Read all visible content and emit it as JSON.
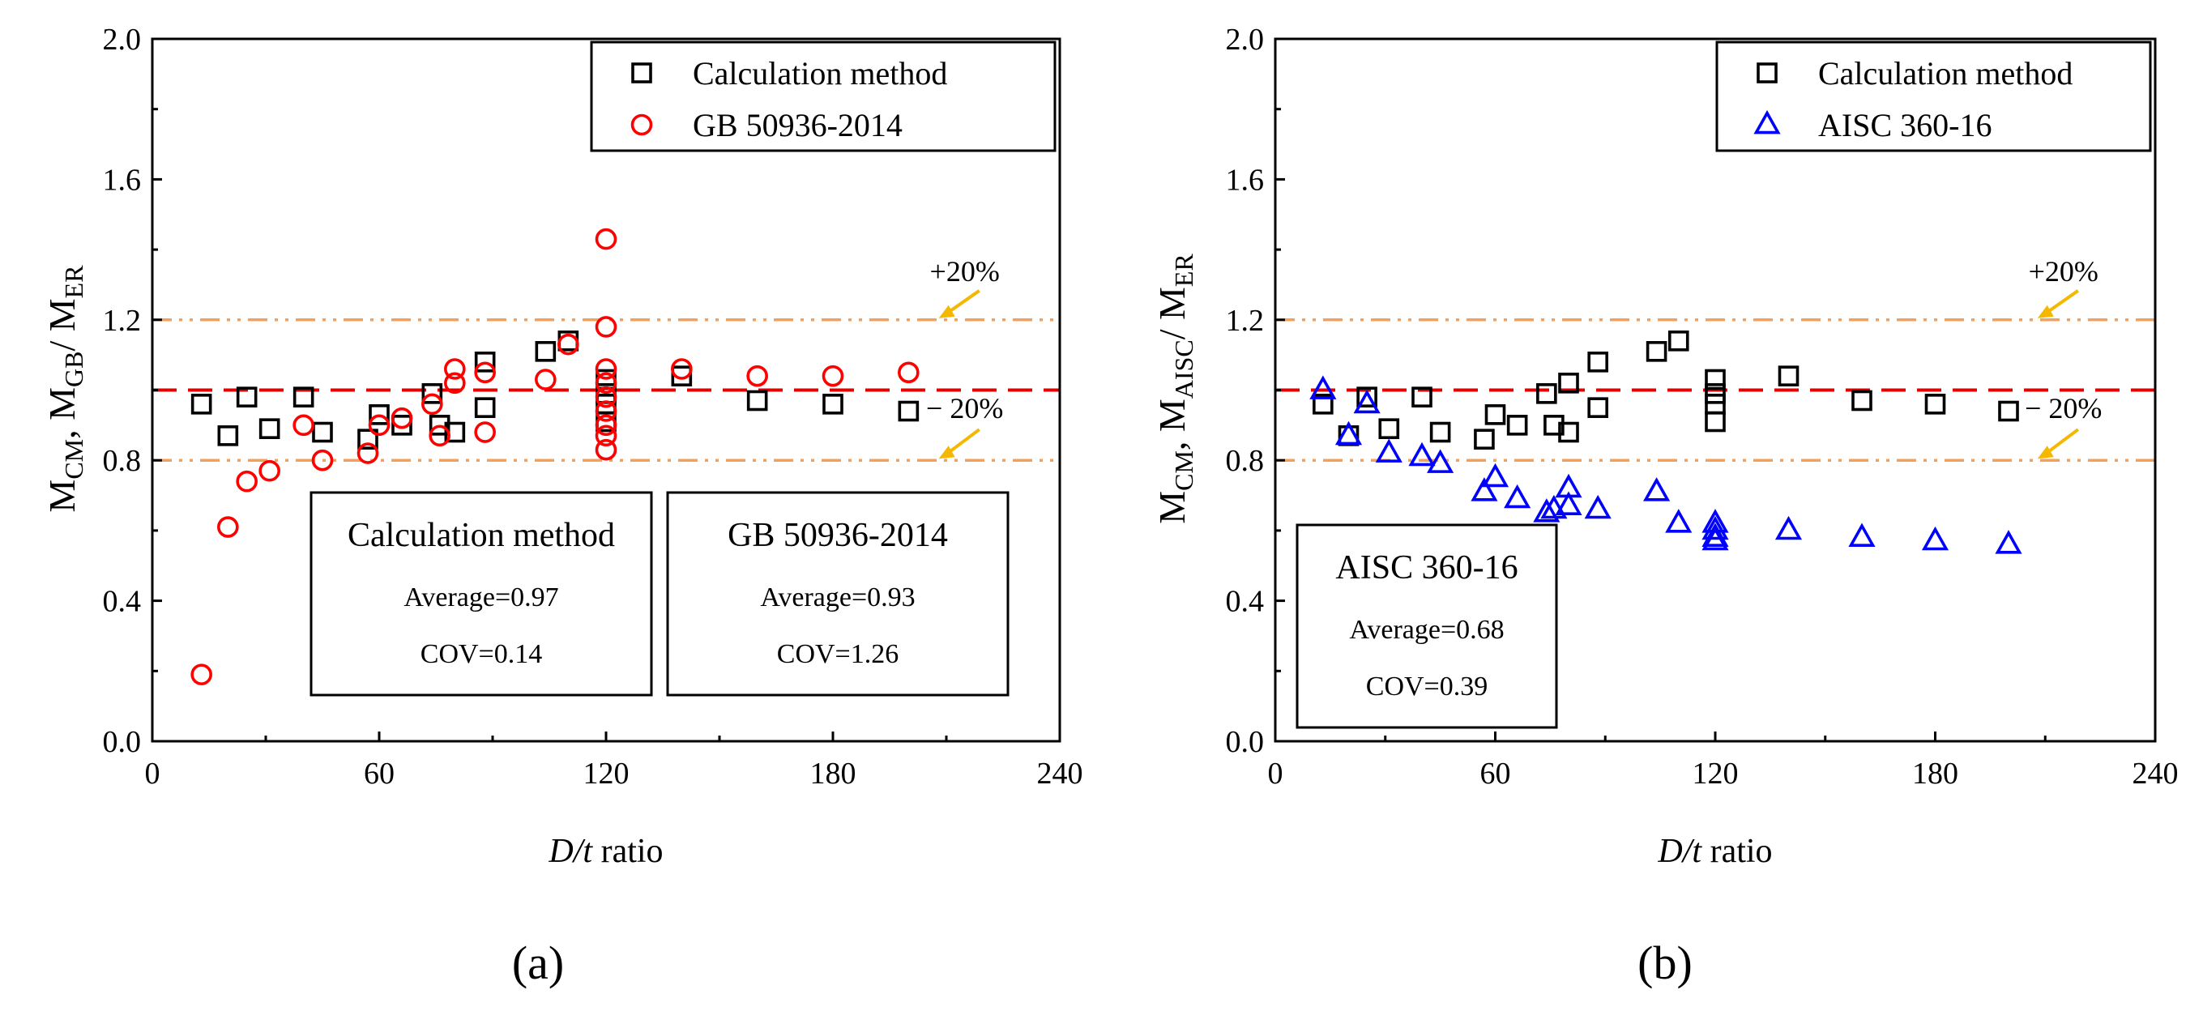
{
  "colors": {
    "calc": "#000000",
    "gb": "#ff0000",
    "aisc": "#0000ff",
    "ref_line": "#e00000",
    "band_line": "#f5a05a",
    "arrow": "#f5b800"
  },
  "chart_data": [
    {
      "type": "scatter",
      "panel_label": "(a)",
      "xlabel_italic": "D/t",
      "xlabel_rest": " ratio",
      "ylabel": {
        "main": "M",
        "sub1": "CM",
        "sep1": ", M",
        "sub2": "GB",
        "sep2": "/ M",
        "sub3": "ER"
      },
      "xlim": [
        0,
        240
      ],
      "ylim": [
        0.0,
        2.0
      ],
      "xticks": [
        "0",
        "60",
        "120",
        "180",
        "240"
      ],
      "xtick_values": [
        0,
        60,
        120,
        180,
        240
      ],
      "yticks": [
        "0.0",
        "0.4",
        "0.8",
        "1.2",
        "1.6",
        "2.0"
      ],
      "ytick_values": [
        0.0,
        0.4,
        0.8,
        1.2,
        1.6,
        2.0
      ],
      "reference_lines": [
        {
          "y": 1.0,
          "style": "dashed",
          "label": ""
        },
        {
          "y": 1.2,
          "style": "dashdot",
          "label": "+20%"
        },
        {
          "y": 0.8,
          "style": "dashdot",
          "label": "− 20%"
        }
      ],
      "legend": [
        "Calculation method",
        "GB 50936-2014"
      ],
      "legend_position": "top-right",
      "series": [
        {
          "name": "Calculation method",
          "marker": "square",
          "color_key": "calc",
          "points": [
            [
              13,
              0.96
            ],
            [
              20,
              0.87
            ],
            [
              25,
              0.98
            ],
            [
              31,
              0.89
            ],
            [
              40,
              0.98
            ],
            [
              45,
              0.88
            ],
            [
              57,
              0.86
            ],
            [
              60,
              0.93
            ],
            [
              66,
              0.9
            ],
            [
              74,
              0.99
            ],
            [
              76,
              0.9
            ],
            [
              80,
              0.88
            ],
            [
              88,
              1.08
            ],
            [
              88,
              0.95
            ],
            [
              104,
              1.11
            ],
            [
              110,
              1.14
            ],
            [
              120,
              1.03
            ],
            [
              120,
              0.99
            ],
            [
              120,
              0.96
            ],
            [
              120,
              0.91
            ],
            [
              140,
              1.04
            ],
            [
              160,
              0.97
            ],
            [
              180,
              0.96
            ],
            [
              200,
              0.94
            ]
          ]
        },
        {
          "name": "GB 50936-2014",
          "marker": "circle",
          "color_key": "gb",
          "points": [
            [
              13,
              0.19
            ],
            [
              20,
              0.61
            ],
            [
              25,
              0.74
            ],
            [
              31,
              0.77
            ],
            [
              40,
              0.9
            ],
            [
              45,
              0.8
            ],
            [
              57,
              0.82
            ],
            [
              60,
              0.9
            ],
            [
              66,
              0.92
            ],
            [
              74,
              0.96
            ],
            [
              76,
              0.87
            ],
            [
              80,
              1.06
            ],
            [
              80,
              1.02
            ],
            [
              88,
              1.05
            ],
            [
              88,
              0.88
            ],
            [
              104,
              1.03
            ],
            [
              110,
              1.13
            ],
            [
              120,
              1.43
            ],
            [
              120,
              1.18
            ],
            [
              120,
              1.06
            ],
            [
              120,
              1.02
            ],
            [
              120,
              0.98
            ],
            [
              120,
              0.94
            ],
            [
              120,
              0.9
            ],
            [
              120,
              0.87
            ],
            [
              120,
              0.83
            ],
            [
              140,
              1.06
            ],
            [
              160,
              1.04
            ],
            [
              180,
              1.04
            ],
            [
              200,
              1.05
            ]
          ]
        }
      ],
      "stat_boxes": [
        {
          "title": "Calculation method",
          "average": "Average=0.97",
          "cov": "COV=0.14"
        },
        {
          "title": "GB 50936-2014",
          "average": "Average=0.93",
          "cov": "COV=1.26"
        }
      ]
    },
    {
      "type": "scatter",
      "panel_label": "(b)",
      "xlabel_italic": "D/t",
      "xlabel_rest": " ratio",
      "ylabel": {
        "main": "M",
        "sub1": "CM",
        "sep1": ", M",
        "sub2": "AISC",
        "sep2": "/ M",
        "sub3": "ER"
      },
      "xlim": [
        0,
        240
      ],
      "ylim": [
        0.0,
        2.0
      ],
      "xticks": [
        "0",
        "60",
        "120",
        "180",
        "240"
      ],
      "xtick_values": [
        0,
        60,
        120,
        180,
        240
      ],
      "yticks": [
        "0.0",
        "0.4",
        "0.8",
        "1.2",
        "1.6",
        "2.0"
      ],
      "ytick_values": [
        0.0,
        0.4,
        0.8,
        1.2,
        1.6,
        2.0
      ],
      "reference_lines": [
        {
          "y": 1.0,
          "style": "dashed",
          "label": ""
        },
        {
          "y": 1.2,
          "style": "dashdot",
          "label": "+20%"
        },
        {
          "y": 0.8,
          "style": "dashdot",
          "label": "− 20%"
        }
      ],
      "legend": [
        "Calculation method",
        "AISC 360-16"
      ],
      "legend_position": "top-right",
      "series": [
        {
          "name": "Calculation method",
          "marker": "square",
          "color_key": "calc",
          "points": [
            [
              13,
              0.96
            ],
            [
              20,
              0.87
            ],
            [
              25,
              0.98
            ],
            [
              31,
              0.89
            ],
            [
              40,
              0.98
            ],
            [
              45,
              0.88
            ],
            [
              57,
              0.86
            ],
            [
              60,
              0.93
            ],
            [
              66,
              0.9
            ],
            [
              74,
              0.99
            ],
            [
              76,
              0.9
            ],
            [
              80,
              0.88
            ],
            [
              80,
              1.02
            ],
            [
              88,
              1.08
            ],
            [
              88,
              0.95
            ],
            [
              104,
              1.11
            ],
            [
              110,
              1.14
            ],
            [
              120,
              1.03
            ],
            [
              120,
              0.99
            ],
            [
              120,
              0.96
            ],
            [
              120,
              0.91
            ],
            [
              140,
              1.04
            ],
            [
              160,
              0.97
            ],
            [
              180,
              0.96
            ],
            [
              200,
              0.94
            ]
          ]
        },
        {
          "name": "AISC 360-16",
          "marker": "triangle",
          "color_key": "aisc",
          "points": [
            [
              13,
              1.0
            ],
            [
              20,
              0.87
            ],
            [
              25,
              0.96
            ],
            [
              31,
              0.82
            ],
            [
              40,
              0.81
            ],
            [
              45,
              0.79
            ],
            [
              57,
              0.71
            ],
            [
              60,
              0.75
            ],
            [
              66,
              0.69
            ],
            [
              74,
              0.65
            ],
            [
              76,
              0.66
            ],
            [
              80,
              0.72
            ],
            [
              80,
              0.67
            ],
            [
              88,
              0.66
            ],
            [
              104,
              0.71
            ],
            [
              110,
              0.62
            ],
            [
              120,
              0.62
            ],
            [
              120,
              0.6
            ],
            [
              120,
              0.58
            ],
            [
              120,
              0.57
            ],
            [
              140,
              0.6
            ],
            [
              160,
              0.58
            ],
            [
              180,
              0.57
            ],
            [
              200,
              0.56
            ]
          ]
        }
      ],
      "stat_boxes": [
        {
          "title": "AISC 360-16",
          "average": "Average=0.68",
          "cov": "COV=0.39"
        }
      ]
    }
  ]
}
